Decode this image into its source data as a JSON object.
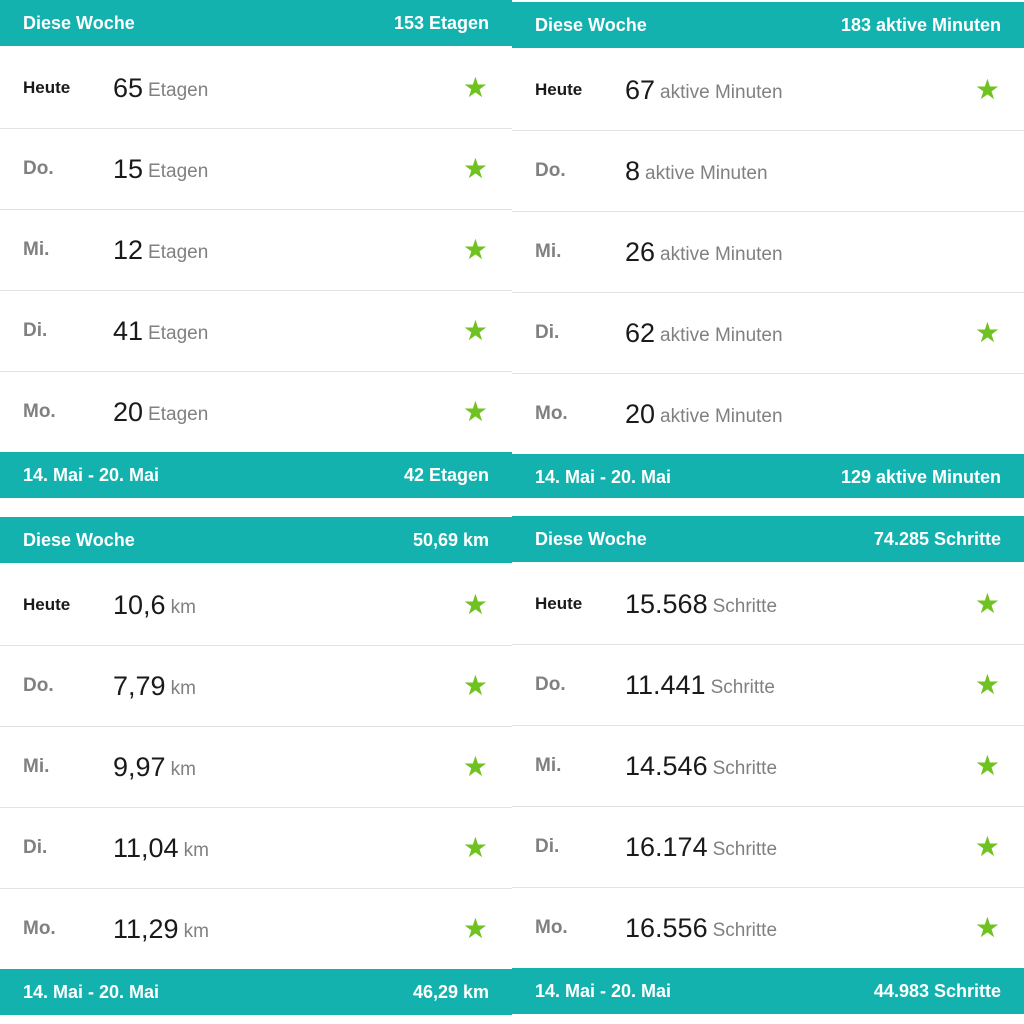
{
  "colors": {
    "band": "#14b2ae",
    "star": "#6fc21f",
    "day_text": "#808080",
    "value_text": "#1a1a1a"
  },
  "icons": {
    "goal_reached": "star-icon"
  },
  "panels": [
    {
      "header": {
        "label": "Diese Woche",
        "total": "153 Etagen"
      },
      "rows": [
        {
          "day": "Heute",
          "value": "65",
          "unit": "Etagen",
          "star": true
        },
        {
          "day": "Do.",
          "value": "15",
          "unit": "Etagen",
          "star": true
        },
        {
          "day": "Mi.",
          "value": "12",
          "unit": "Etagen",
          "star": true
        },
        {
          "day": "Di.",
          "value": "41",
          "unit": "Etagen",
          "star": true
        },
        {
          "day": "Mo.",
          "value": "20",
          "unit": "Etagen",
          "star": true
        }
      ],
      "footer": {
        "label": "14. Mai - 20. Mai",
        "total": "42 Etagen"
      }
    },
    {
      "header": {
        "label": "Diese Woche",
        "total": "183 aktive Minuten"
      },
      "rows": [
        {
          "day": "Heute",
          "value": "67",
          "unit": "aktive Minuten",
          "star": true
        },
        {
          "day": "Do.",
          "value": "8",
          "unit": "aktive Minuten",
          "star": false
        },
        {
          "day": "Mi.",
          "value": "26",
          "unit": "aktive Minuten",
          "star": false
        },
        {
          "day": "Di.",
          "value": "62",
          "unit": "aktive Minuten",
          "star": true
        },
        {
          "day": "Mo.",
          "value": "20",
          "unit": "aktive Minuten",
          "star": false
        }
      ],
      "footer": {
        "label": "14. Mai - 20. Mai",
        "total": "129 aktive Minuten"
      }
    },
    {
      "header": {
        "label": "Diese Woche",
        "total": "50,69 km"
      },
      "rows": [
        {
          "day": "Heute",
          "value": "10,6",
          "unit": "km",
          "star": true
        },
        {
          "day": "Do.",
          "value": "7,79",
          "unit": "km",
          "star": true
        },
        {
          "day": "Mi.",
          "value": "9,97",
          "unit": "km",
          "star": true
        },
        {
          "day": "Di.",
          "value": "11,04",
          "unit": "km",
          "star": true
        },
        {
          "day": "Mo.",
          "value": "11,29",
          "unit": "km",
          "star": true
        }
      ],
      "footer": {
        "label": "14. Mai - 20. Mai",
        "total": "46,29 km"
      }
    },
    {
      "header": {
        "label": "Diese Woche",
        "total": "74.285 Schritte"
      },
      "rows": [
        {
          "day": "Heute",
          "value": "15.568",
          "unit": "Schritte",
          "star": true
        },
        {
          "day": "Do.",
          "value": "11.441",
          "unit": "Schritte",
          "star": true
        },
        {
          "day": "Mi.",
          "value": "14.546",
          "unit": "Schritte",
          "star": true
        },
        {
          "day": "Di.",
          "value": "16.174",
          "unit": "Schritte",
          "star": true
        },
        {
          "day": "Mo.",
          "value": "16.556",
          "unit": "Schritte",
          "star": true
        }
      ],
      "footer": {
        "label": "14. Mai - 20. Mai",
        "total": "44.983 Schritte"
      }
    }
  ]
}
